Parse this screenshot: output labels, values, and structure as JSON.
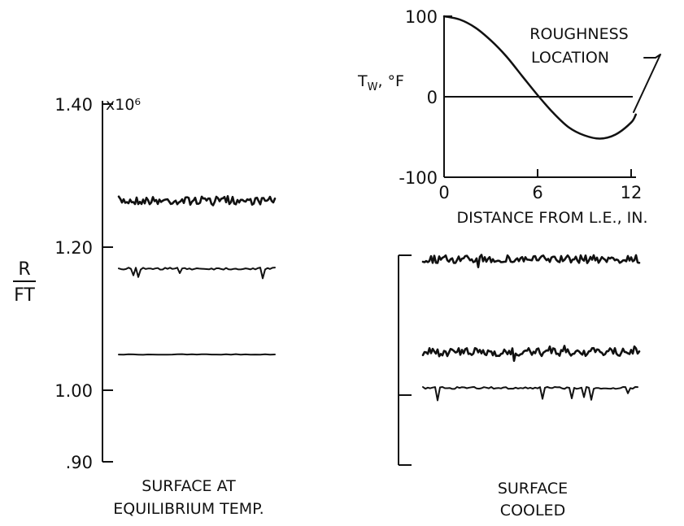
{
  "chart_data": [
    {
      "type": "line",
      "panel": "left",
      "ylabel_num": "R",
      "ylabel_den": "FT",
      "y_multiplier": "x10⁶",
      "ylim": [
        0.9,
        1.4
      ],
      "yticks": [
        {
          "value": 0.9,
          "label": ".90"
        },
        {
          "value": 1.0,
          "label": "1.00"
        },
        {
          "value": 1.2,
          "label": "1.20"
        },
        {
          "value": 1.4,
          "label": "1.40"
        }
      ],
      "caption_line1": "SURFACE AT",
      "caption_line2": "EQUILIBRIUM TEMP.",
      "series": [
        {
          "level": 1.265,
          "noise": "heavy"
        },
        {
          "level": 1.17,
          "noise": "spiky"
        },
        {
          "level": 1.05,
          "noise": "clean"
        }
      ]
    },
    {
      "type": "line",
      "panel": "inset",
      "ylabel": "Tᵤ, °F",
      "ylabel_main": "T",
      "ylabel_sub": "W",
      "ylabel_unit": ", °F",
      "xlabel": "DISTANCE FROM L.E., IN.",
      "xlim": [
        0,
        12.5
      ],
      "ylim": [
        -100,
        100
      ],
      "xticks": [
        {
          "value": 0,
          "label": "0"
        },
        {
          "value": 6,
          "label": "6"
        },
        {
          "value": 12,
          "label": "12"
        }
      ],
      "yticks": [
        {
          "value": 100,
          "label": "100"
        },
        {
          "value": 0,
          "label": "0"
        },
        {
          "value": -100,
          "label": "-100"
        }
      ],
      "annotation_line1": "ROUGHNESS",
      "annotation_line2": "LOCATION",
      "x": [
        0,
        1,
        2,
        3,
        4,
        5,
        6,
        7,
        8,
        9,
        10,
        11,
        12,
        12.3
      ],
      "y": [
        100,
        96,
        86,
        70,
        50,
        26,
        2,
        -20,
        -38,
        -48,
        -52,
        -47,
        -32,
        -22
      ]
    },
    {
      "type": "line",
      "panel": "right",
      "caption_line1": "SURFACE",
      "caption_line2": "COOLED",
      "series": [
        {
          "level": 1.17,
          "noise": "heavy"
        },
        {
          "level": 1.04,
          "noise": "heavy"
        },
        {
          "level": 0.99,
          "noise": "spiky"
        }
      ]
    }
  ]
}
